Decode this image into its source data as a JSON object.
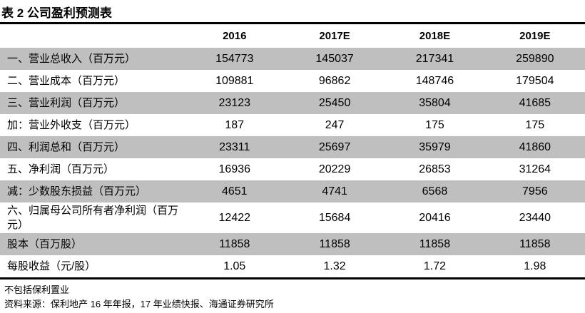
{
  "title": "表 2 公司盈利预测表",
  "columns": [
    "",
    "2016",
    "2017E",
    "2018E",
    "2019E"
  ],
  "rows": [
    {
      "label": "一、营业总收入（百万元）",
      "values": [
        "154773",
        "145037",
        "217341",
        "259890"
      ]
    },
    {
      "label": "二、营业成本（百万元）",
      "values": [
        "109881",
        "96862",
        "148746",
        "179504"
      ]
    },
    {
      "label": "三、营业利润（百万元）",
      "values": [
        "23123",
        "25450",
        "35804",
        "41685"
      ]
    },
    {
      "label": "加：营业外收支（百万元）",
      "values": [
        "187",
        "247",
        "175",
        "175"
      ]
    },
    {
      "label": "四、利润总和（百万元）",
      "values": [
        "23311",
        "25697",
        "35979",
        "41860"
      ]
    },
    {
      "label": "五、净利润（百万元）",
      "values": [
        "16936",
        "20229",
        "26853",
        "31264"
      ]
    },
    {
      "label": "减：少数股东损益（百万元）",
      "values": [
        "4651",
        "4741",
        "6568",
        "7956"
      ]
    },
    {
      "label": "六、归属母公司所有者净利润（百万元）",
      "values": [
        "12422",
        "15684",
        "20416",
        "23440"
      ]
    },
    {
      "label": "股本（百万股）",
      "values": [
        "11858",
        "11858",
        "11858",
        "11858"
      ]
    },
    {
      "label": "每股收益（元/股）",
      "values": [
        "1.05",
        "1.32",
        "1.72",
        "1.98"
      ]
    }
  ],
  "notes": [
    "不包括保利置业",
    "资料来源：保利地产 16 年年报，17 年业绩快报、海通证券研究所"
  ],
  "colors": {
    "row_shade": "#bfbfbf"
  }
}
